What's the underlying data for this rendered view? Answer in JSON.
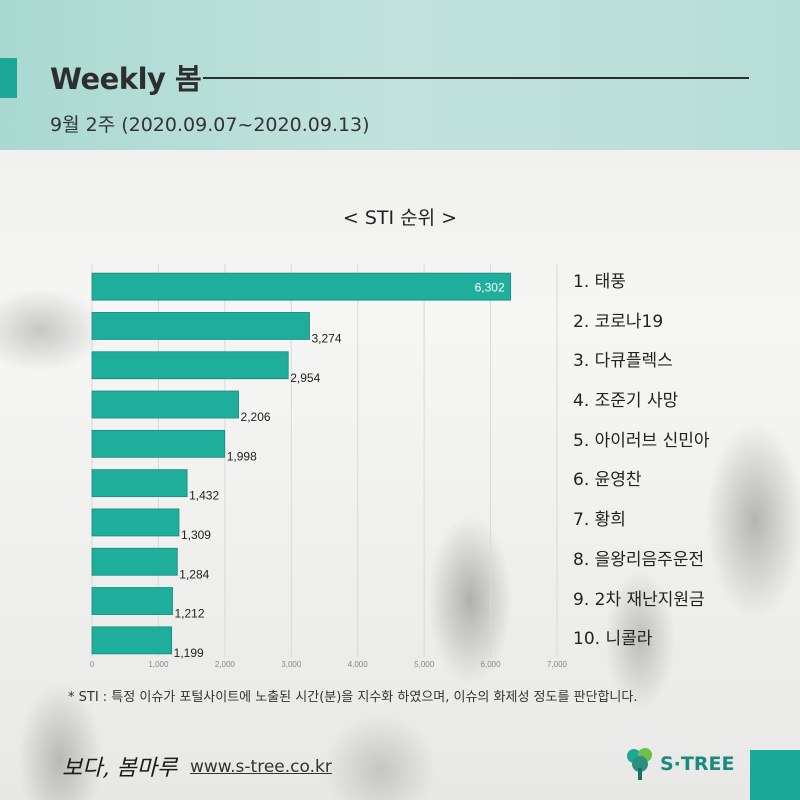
{
  "header": {
    "title": "Weekly 봄",
    "week": "9월 2주 (2020.09.07~2020.09.13)"
  },
  "chart_data": {
    "type": "bar",
    "orientation": "horizontal",
    "title": "< STI 순위 >",
    "categories": [
      "1. 태풍",
      "2. 코로나19",
      "3. 다큐플렉스",
      "4. 조준기 사망",
      "5. 아이러브 신민아",
      "6. 윤영찬",
      "7. 황희",
      "8. 을왕리음주운전",
      "9. 2차 재난지원금",
      "10. 니콜라"
    ],
    "values": [
      6302,
      3274,
      2954,
      2206,
      1998,
      1432,
      1309,
      1284,
      1212,
      1199
    ],
    "value_labels": [
      "6,302",
      "3,274",
      "2,954",
      "2,206",
      "1,998",
      "1,432",
      "1,309",
      "1,284",
      "1,212",
      "1,199"
    ],
    "xlim": [
      0,
      7000
    ],
    "x_ticks": [
      0,
      1000,
      2000,
      3000,
      4000,
      5000,
      6000,
      7000
    ],
    "x_tick_labels": [
      "0",
      "1,000",
      "2,000",
      "3,000",
      "4,000",
      "5,000",
      "6,000",
      "7,000"
    ],
    "bar_color": "#1fae9c",
    "grid": true
  },
  "footnote": "* STI : 특정 이슈가 포털사이트에 노출된 시간(분)을 지수화 하였으며, 이슈의 화제성 정도를 판단합니다.",
  "footer": {
    "brand": "보다, 봄마루",
    "url": "www.s-tree.co.kr",
    "logo_text": "S·TREE"
  },
  "colors": {
    "accent": "#1ba898",
    "header_bg": "#b6ded7"
  }
}
